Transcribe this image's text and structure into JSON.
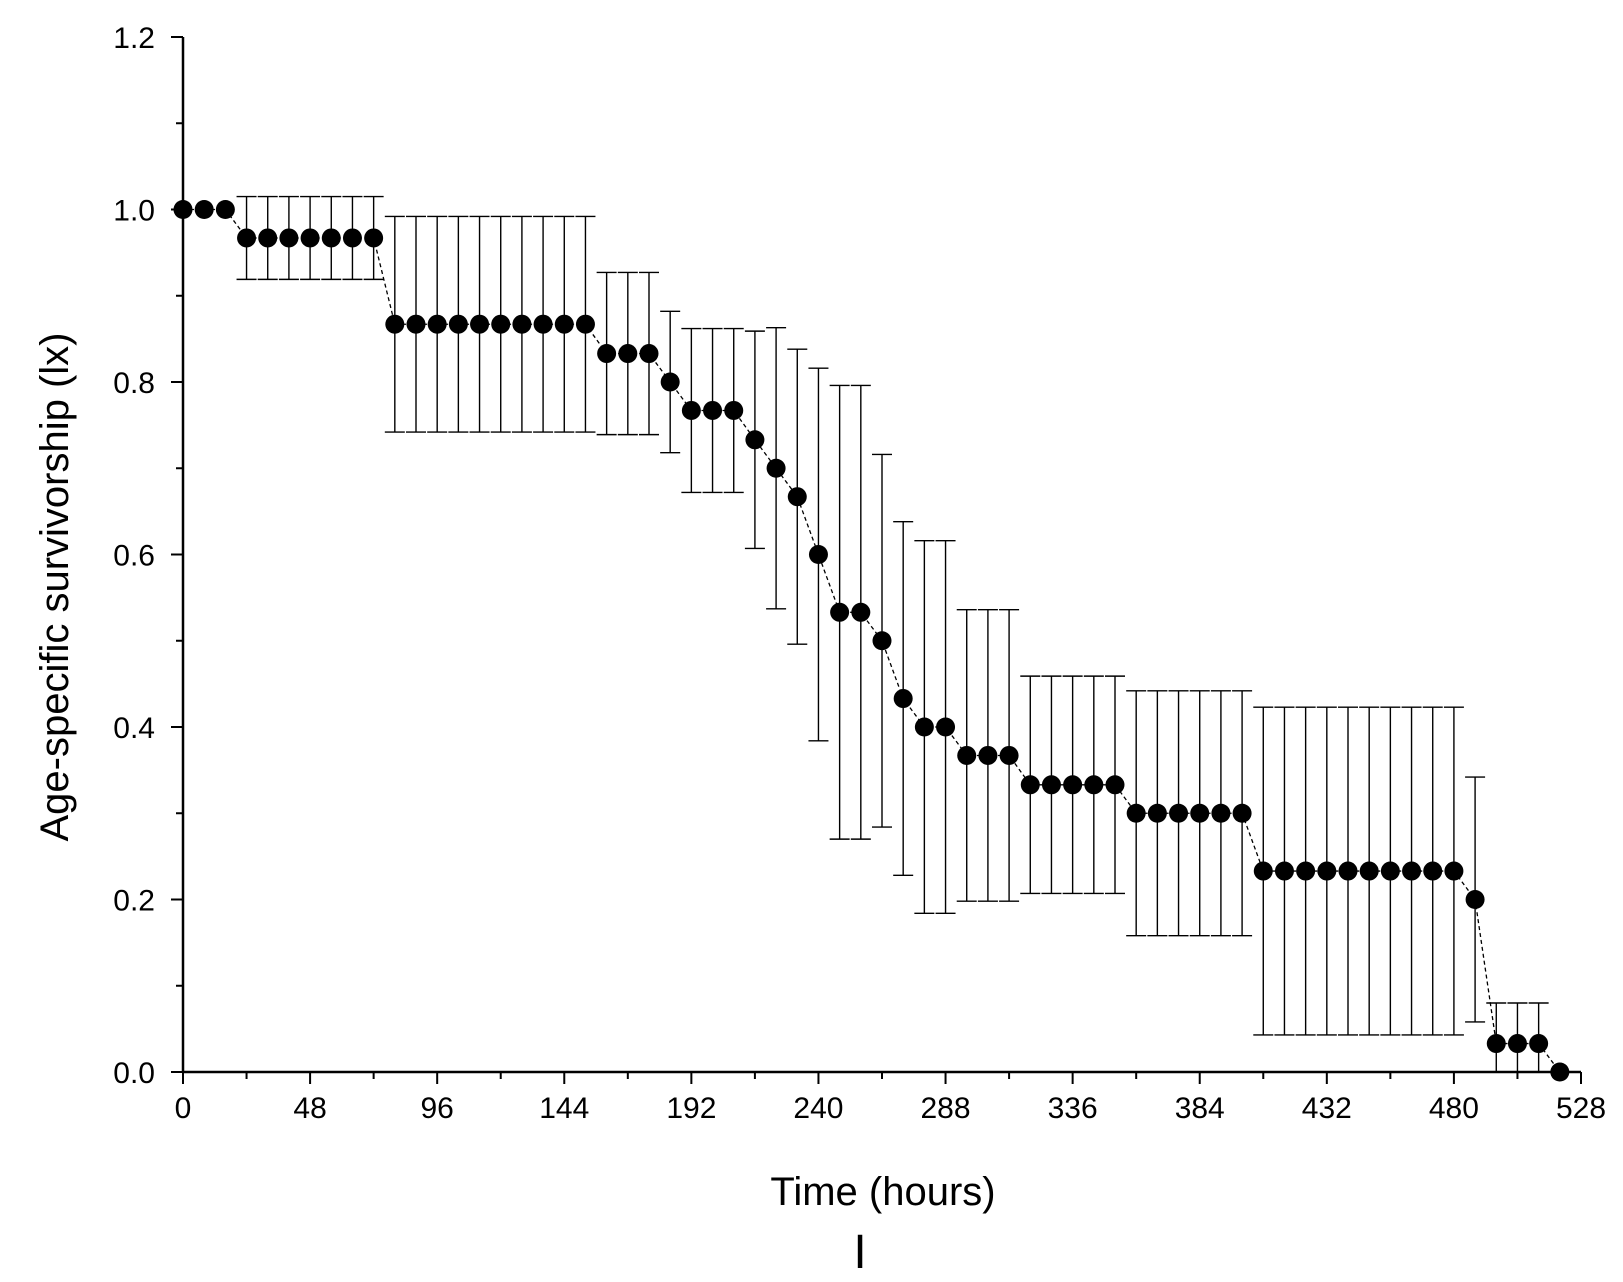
{
  "chart_data": {
    "type": "scatter",
    "title": "",
    "xlabel": "Time (hours)",
    "ylabel": "Age-specific survivorship (lx)",
    "panel_label": "I",
    "xlim": [
      0,
      528
    ],
    "ylim": [
      0,
      1.2
    ],
    "x_ticks": [
      0,
      48,
      96,
      144,
      192,
      240,
      288,
      336,
      384,
      432,
      480,
      528
    ],
    "y_ticks": [
      "0.0",
      "0.2",
      "0.4",
      "0.6",
      "0.8",
      "1.0",
      "1.2"
    ],
    "grid": false,
    "legend": "none",
    "series": [
      {
        "name": "lx",
        "x": [
          0,
          8,
          16,
          24,
          32,
          40,
          48,
          56,
          64,
          72,
          80,
          88,
          96,
          104,
          112,
          120,
          128,
          136,
          144,
          152,
          160,
          168,
          176,
          184,
          192,
          200,
          208,
          216,
          224,
          232,
          240,
          248,
          256,
          264,
          272,
          280,
          288,
          296,
          304,
          312,
          320,
          328,
          336,
          344,
          352,
          360,
          368,
          376,
          384,
          392,
          400,
          408,
          416,
          424,
          432,
          440,
          448,
          456,
          464,
          472,
          480,
          488,
          496,
          504,
          512,
          520
        ],
        "values": [
          1.0,
          1.0,
          1.0,
          0.967,
          0.967,
          0.967,
          0.967,
          0.967,
          0.967,
          0.967,
          0.867,
          0.867,
          0.867,
          0.867,
          0.867,
          0.867,
          0.867,
          0.867,
          0.867,
          0.867,
          0.833,
          0.833,
          0.833,
          0.8,
          0.767,
          0.767,
          0.767,
          0.733,
          0.7,
          0.667,
          0.6,
          0.533,
          0.533,
          0.5,
          0.433,
          0.4,
          0.4,
          0.367,
          0.367,
          0.367,
          0.333,
          0.333,
          0.333,
          0.333,
          0.333,
          0.3,
          0.3,
          0.3,
          0.3,
          0.3,
          0.3,
          0.233,
          0.233,
          0.233,
          0.233,
          0.233,
          0.233,
          0.233,
          0.233,
          0.233,
          0.233,
          0.2,
          0.033,
          0.033,
          0.033,
          0.0
        ],
        "error": [
          0,
          0,
          0,
          0.048,
          0.048,
          0.048,
          0.048,
          0.048,
          0.048,
          0.048,
          0.125,
          0.125,
          0.125,
          0.125,
          0.125,
          0.125,
          0.125,
          0.125,
          0.125,
          0.125,
          0.094,
          0.094,
          0.094,
          0.082,
          0.095,
          0.095,
          0.095,
          0.126,
          0.163,
          0.171,
          0.216,
          0.263,
          0.263,
          0.216,
          0.205,
          0.216,
          0.216,
          0.169,
          0.169,
          0.169,
          0.126,
          0.126,
          0.126,
          0.126,
          0.126,
          0.142,
          0.142,
          0.142,
          0.142,
          0.142,
          0.142,
          0.19,
          0.19,
          0.19,
          0.19,
          0.19,
          0.19,
          0.19,
          0.19,
          0.19,
          0.19,
          0.142,
          0.047,
          0.047,
          0.047,
          0
        ]
      }
    ]
  }
}
